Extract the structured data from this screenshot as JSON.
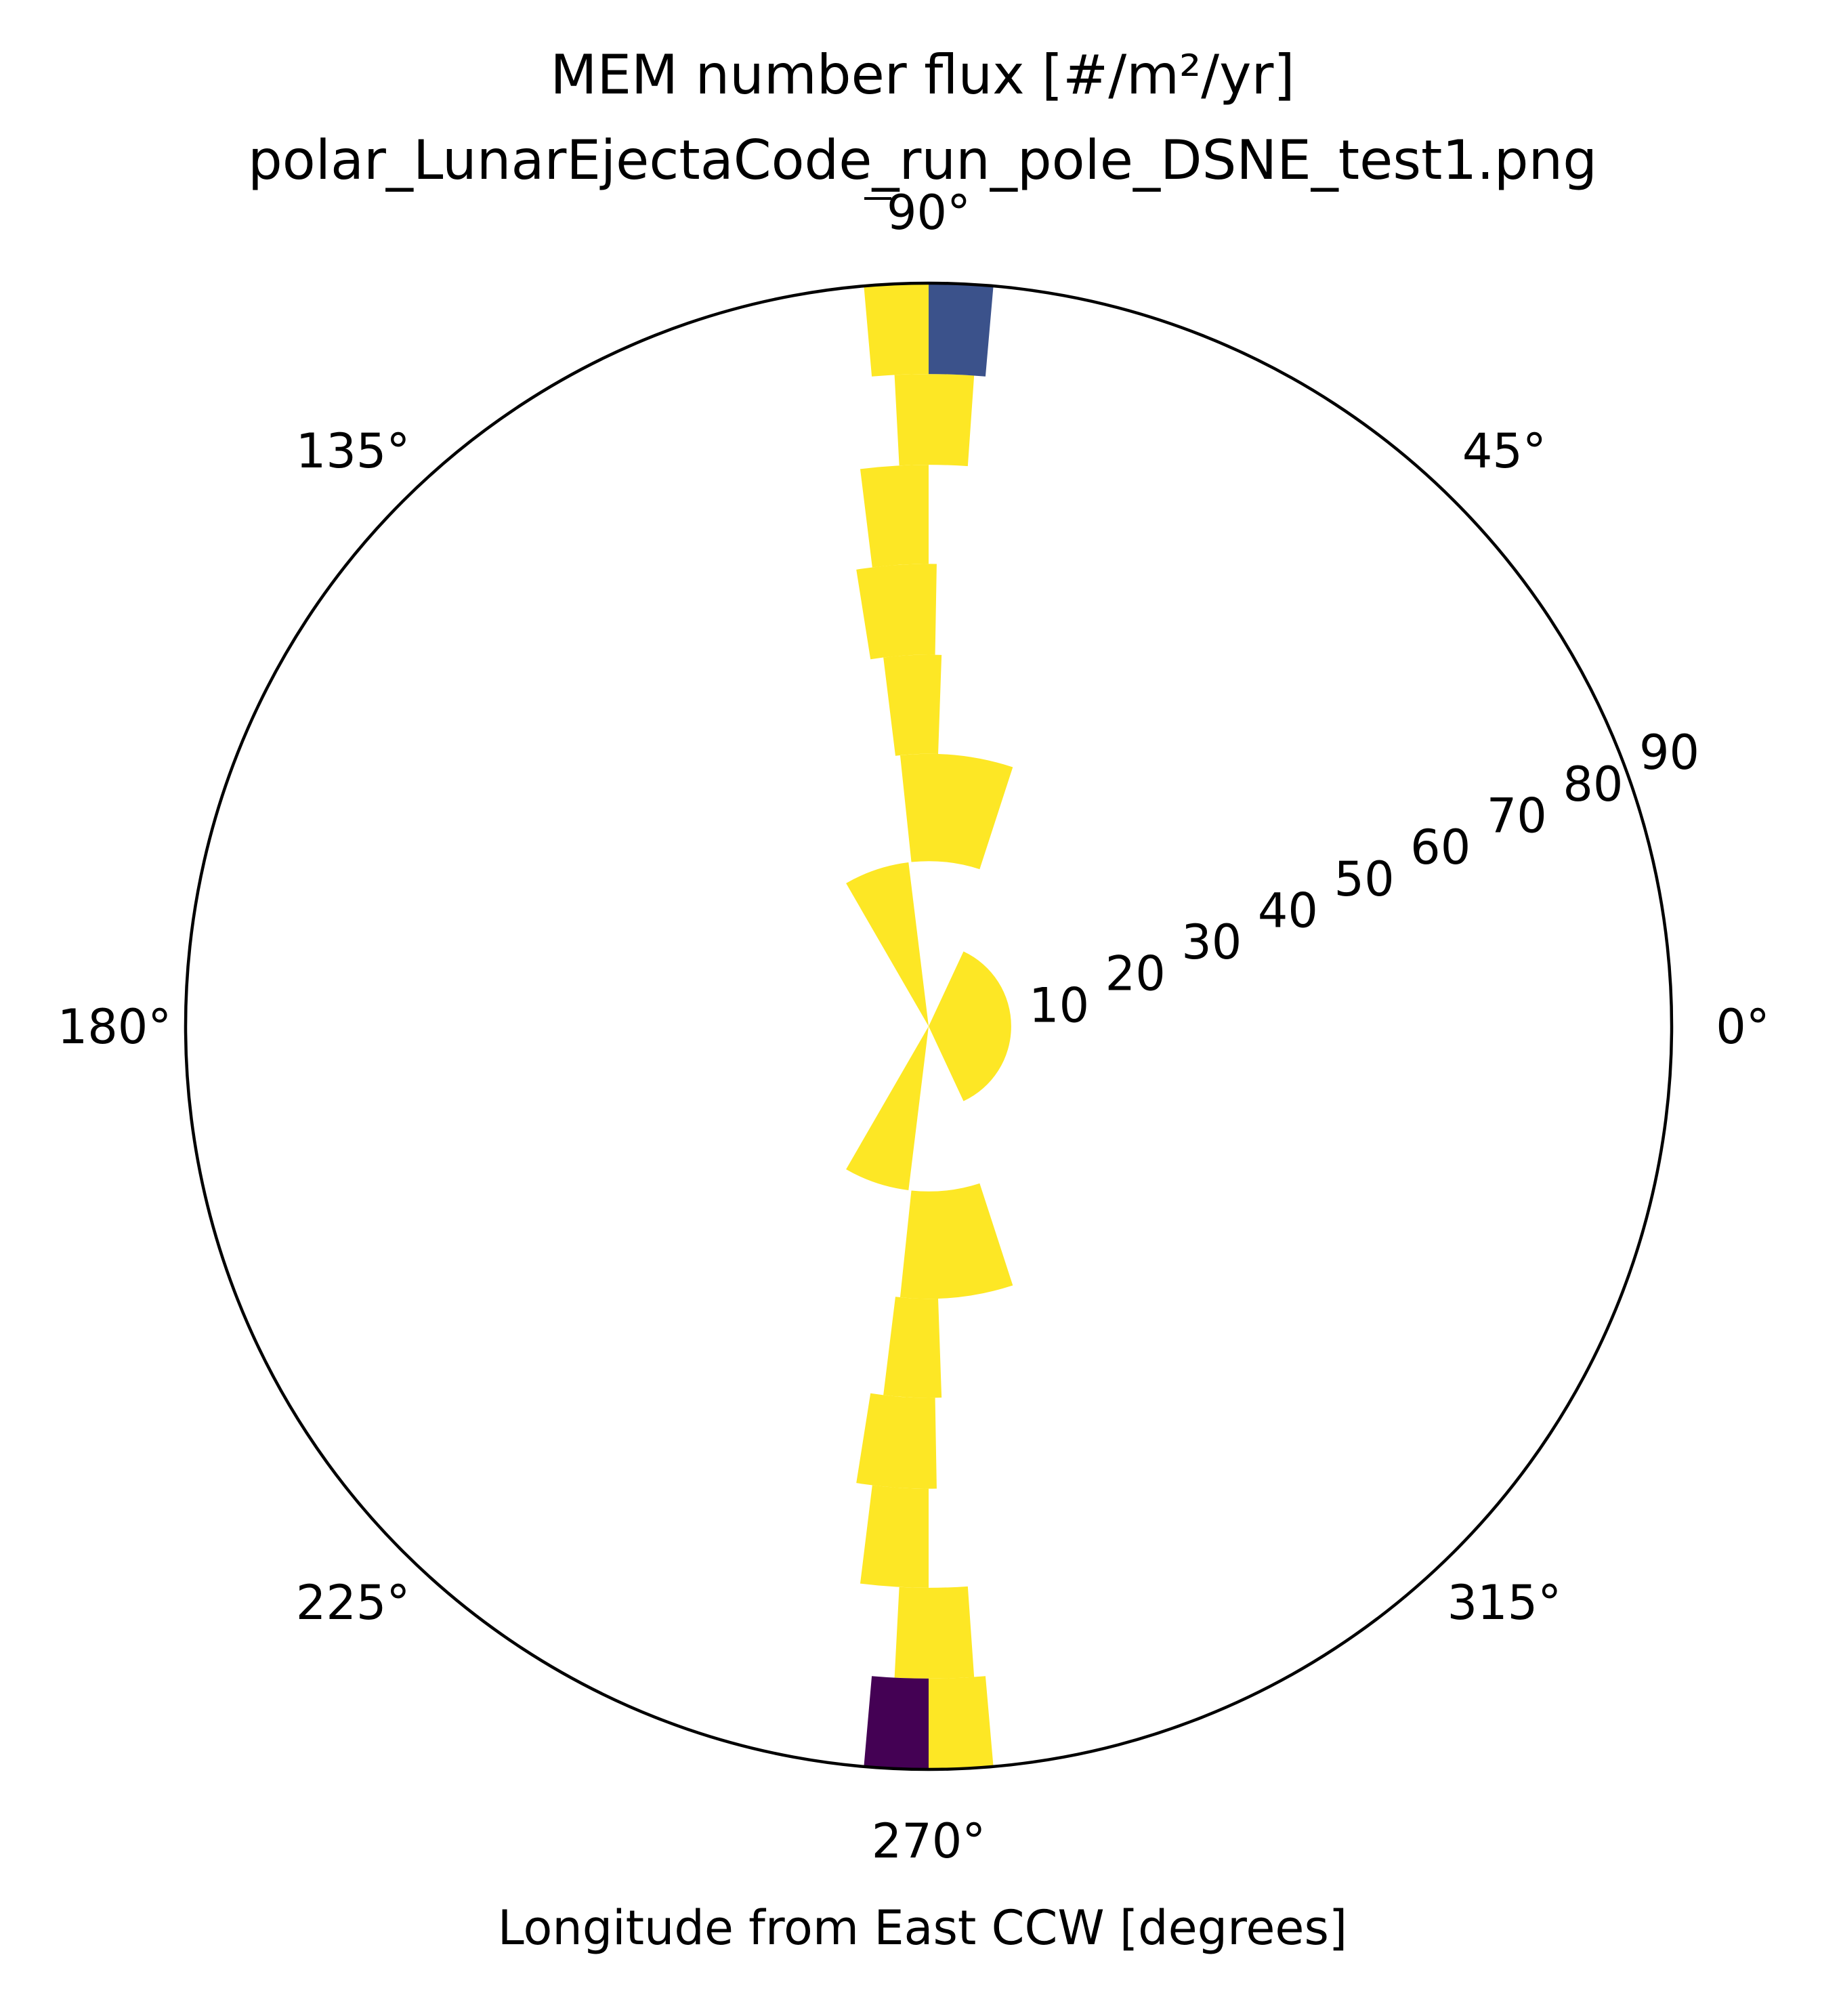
{
  "chart_data": {
    "type": "polar-bar",
    "title": "MEM number flux [#/m²/yr]",
    "subtitle": "polar_LunarEjectaCode_run_pole_DSNE_test1.png",
    "xlabel": "Longitude from East CCW [degrees]",
    "angular_ticks": [
      {
        "deg": 0,
        "label": "0°"
      },
      {
        "deg": 45,
        "label": "45°"
      },
      {
        "deg": 90,
        "label": "90°"
      },
      {
        "deg": 135,
        "label": "135°"
      },
      {
        "deg": 180,
        "label": "180°"
      },
      {
        "deg": 225,
        "label": "225°"
      },
      {
        "deg": 270,
        "label": "270°"
      },
      {
        "deg": 315,
        "label": "315°"
      }
    ],
    "radial_ticks": [
      10,
      20,
      30,
      40,
      50,
      60,
      70,
      80,
      90
    ],
    "rlim": [
      0,
      90
    ],
    "radial_label_angle_deg": 22.5,
    "grid": false,
    "colormap": "viridis",
    "colors": {
      "high": "#fde725",
      "mid": "#3b528b",
      "low": "#440154"
    },
    "bins": [
      {
        "r0": 0,
        "r1": 10,
        "theta0": -65,
        "theta1": 65,
        "color": "#fde725"
      },
      {
        "r0": 0,
        "r1": 20,
        "theta0": 97,
        "theta1": 120,
        "color": "#fde725"
      },
      {
        "r0": 0,
        "r1": 20,
        "theta0": 240,
        "theta1": 263,
        "color": "#fde725"
      },
      {
        "r0": 20,
        "r1": 33,
        "theta0": 72,
        "theta1": 96,
        "color": "#fde725"
      },
      {
        "r0": 20,
        "r1": 33,
        "theta0": 264,
        "theta1": 288,
        "color": "#fde725"
      },
      {
        "r0": 33,
        "r1": 45,
        "theta0": 88,
        "theta1": 97,
        "color": "#fde725"
      },
      {
        "r0": 33,
        "r1": 45,
        "theta0": 263,
        "theta1": 272,
        "color": "#fde725"
      },
      {
        "r0": 45,
        "r1": 56,
        "theta0": 89,
        "theta1": 99,
        "color": "#fde725"
      },
      {
        "r0": 45,
        "r1": 56,
        "theta0": 261,
        "theta1": 271,
        "color": "#fde725"
      },
      {
        "r0": 56,
        "r1": 68,
        "theta0": 90,
        "theta1": 97,
        "color": "#fde725"
      },
      {
        "r0": 56,
        "r1": 68,
        "theta0": 263,
        "theta1": 270,
        "color": "#fde725"
      },
      {
        "r0": 68,
        "r1": 79,
        "theta0": 86,
        "theta1": 93,
        "color": "#fde725"
      },
      {
        "r0": 68,
        "r1": 79,
        "theta0": 267,
        "theta1": 274,
        "color": "#fde725"
      },
      {
        "r0": 79,
        "r1": 90,
        "theta0": 85,
        "theta1": 90,
        "color": "#3b528b"
      },
      {
        "r0": 79,
        "r1": 90,
        "theta0": 90,
        "theta1": 95,
        "color": "#fde725"
      },
      {
        "r0": 79,
        "r1": 90,
        "theta0": 265,
        "theta1": 270,
        "color": "#440154"
      },
      {
        "r0": 79,
        "r1": 90,
        "theta0": 270,
        "theta1": 275,
        "color": "#fde725"
      }
    ]
  }
}
